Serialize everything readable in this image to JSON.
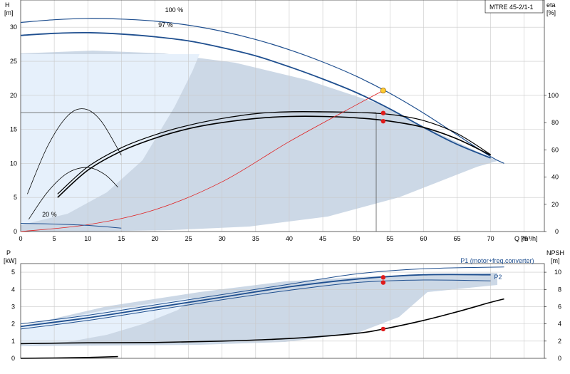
{
  "chart_data": [
    {
      "type": "line",
      "title": "MTRE 45-2/1-1",
      "xlabel": "Q [m³/h]",
      "ylabel_lines": [
        "H",
        "[m]"
      ],
      "y2label_lines": [
        "eta",
        "[%]"
      ],
      "xlim": [
        0,
        78
      ],
      "ylim": [
        0,
        34
      ],
      "y2lim": [
        0,
        170
      ],
      "x_ticks": [
        "0",
        "5",
        "10",
        "15",
        "20",
        "25",
        "30",
        "35",
        "40",
        "45",
        "50",
        "55",
        "60",
        "65",
        "70",
        "75"
      ],
      "y_ticks": [
        "0",
        "5",
        "10",
        "15",
        "20",
        "25",
        "30"
      ],
      "y2_ticks": [
        "0",
        "20",
        "40",
        "60",
        "80",
        "100"
      ],
      "grid": true,
      "annotations": [
        {
          "text": "100 %",
          "x": 21.5,
          "y": 32.2
        },
        {
          "text": "97 %",
          "x": 20.5,
          "y": 30.0
        },
        {
          "text": "20 %",
          "x": 3.2,
          "y": 2.2
        }
      ],
      "duty_point": {
        "q": 54,
        "h": 20.7
      },
      "working_points": [
        {
          "q": 54,
          "h": 17.4
        },
        {
          "q": 54,
          "h": 16.2
        }
      ],
      "series": [
        {
          "x": [
            0,
            5,
            10,
            15,
            20,
            25,
            30,
            35,
            40,
            45,
            50,
            55,
            60,
            65,
            70,
            72
          ],
          "y": [
            30.7,
            31.1,
            31.3,
            31.2,
            30.9,
            30.3,
            29.4,
            28.2,
            26.7,
            24.9,
            22.8,
            20.3,
            17.4,
            14.2,
            11.0,
            10.0
          ],
          "color": "#1f4f8f",
          "width": 1.2
        },
        {
          "x": [
            0,
            5,
            10,
            15,
            20,
            25,
            30,
            35,
            40,
            45,
            50,
            55,
            60,
            65,
            70
          ],
          "y": [
            28.8,
            29.1,
            29.2,
            29.0,
            28.6,
            28.0,
            27.0,
            25.8,
            24.2,
            22.4,
            20.4,
            18.0,
            15.3,
            12.8,
            10.8
          ],
          "color": "#1f4f8f",
          "width": 1.8
        },
        {
          "x": [
            5.5,
            10,
            15,
            20,
            25,
            30,
            35,
            40,
            45,
            50,
            55,
            60,
            65,
            70
          ],
          "y": [
            5.5,
            9.5,
            12.3,
            14.2,
            15.6,
            16.6,
            17.3,
            17.6,
            17.6,
            17.5,
            17.2,
            16.3,
            14.4,
            11.3
          ],
          "color": "#000000",
          "width": 1.2
        },
        {
          "x": [
            5.5,
            10,
            15,
            20,
            25,
            30,
            35,
            40,
            45,
            50,
            55,
            60,
            65,
            70
          ],
          "y": [
            5.0,
            9.0,
            11.8,
            13.7,
            15.1,
            16.0,
            16.6,
            16.9,
            16.9,
            16.7,
            16.2,
            15.3,
            13.6,
            11.2
          ],
          "color": "#000000",
          "width": 1.6
        },
        {
          "x": [
            0,
            10,
            20,
            30,
            40,
            50,
            54
          ],
          "y": [
            0,
            1.0,
            3.2,
            7.3,
            13.2,
            18.6,
            20.7
          ],
          "color": "#e02020",
          "width": 0.8
        },
        {
          "x": [
            0,
            5,
            10,
            15
          ],
          "y": [
            1.2,
            1.1,
            0.9,
            0.5
          ],
          "color": "#1f4f8f",
          "width": 1.0
        },
        {
          "x": [
            1,
            4,
            7,
            9.5,
            12,
            15
          ],
          "y": [
            5.5,
            12.5,
            17.0,
            18.0,
            16.2,
            11.2
          ],
          "color": "#000000",
          "width": 0.8
        },
        {
          "x": [
            1.2,
            4,
            7,
            10,
            12.5,
            14.5
          ],
          "y": [
            1.8,
            5.8,
            8.6,
            9.4,
            8.4,
            6.5
          ],
          "color": "#000000",
          "width": 0.8
        }
      ]
    },
    {
      "type": "line",
      "xlabel": "",
      "ylabel_lines": [
        "P",
        "[kW]"
      ],
      "y2label_lines": [
        "NPSH",
        "[m]"
      ],
      "xlim": [
        0,
        78
      ],
      "ylim": [
        0,
        5.5
      ],
      "y2lim": [
        0,
        11
      ],
      "y_ticks": [
        "0",
        "1",
        "2",
        "3",
        "4",
        "5"
      ],
      "y2_ticks": [
        "0",
        "2",
        "4",
        "6",
        "8",
        "10"
      ],
      "grid": true,
      "legend_labels": [
        {
          "text": "P1 (motor+freq.converter)",
          "x": 65.5,
          "y": 5.55
        },
        {
          "text": "P2",
          "x": 70.5,
          "y": 4.6
        }
      ],
      "working_points": [
        {
          "q": 54,
          "p": 4.7
        },
        {
          "q": 54,
          "p": 4.4
        },
        {
          "q": 54,
          "p": 1.7
        }
      ],
      "series": [
        {
          "x": [
            0,
            10,
            20,
            30,
            40,
            50,
            60,
            72
          ],
          "y": [
            2.0,
            2.5,
            3.1,
            3.7,
            4.3,
            4.9,
            5.2,
            5.3
          ],
          "color": "#1f4f8f",
          "width": 1.0
        },
        {
          "x": [
            0,
            10,
            20,
            30,
            40,
            50,
            60,
            70
          ],
          "y": [
            1.85,
            2.35,
            2.95,
            3.55,
            4.15,
            4.6,
            4.85,
            4.85
          ],
          "color": "#1f4f8f",
          "width": 1.8
        },
        {
          "x": [
            0,
            10,
            20,
            30,
            40,
            50,
            60,
            70
          ],
          "y": [
            1.7,
            2.2,
            2.8,
            3.4,
            3.95,
            4.4,
            4.55,
            4.5
          ],
          "color": "#1f4f8f",
          "width": 1.0
        },
        {
          "x": [
            0,
            10,
            20,
            30,
            40,
            50,
            54,
            60,
            65,
            70,
            72
          ],
          "y": [
            0.85,
            0.9,
            0.92,
            1.0,
            1.15,
            1.45,
            1.7,
            2.2,
            2.7,
            3.25,
            3.45
          ],
          "color": "#000000",
          "width": 1.6
        },
        {
          "x": [
            0,
            5,
            10,
            14.5
          ],
          "y": [
            0.0,
            0.02,
            0.05,
            0.1
          ],
          "color": "#000000",
          "width": 1.6
        }
      ]
    }
  ]
}
